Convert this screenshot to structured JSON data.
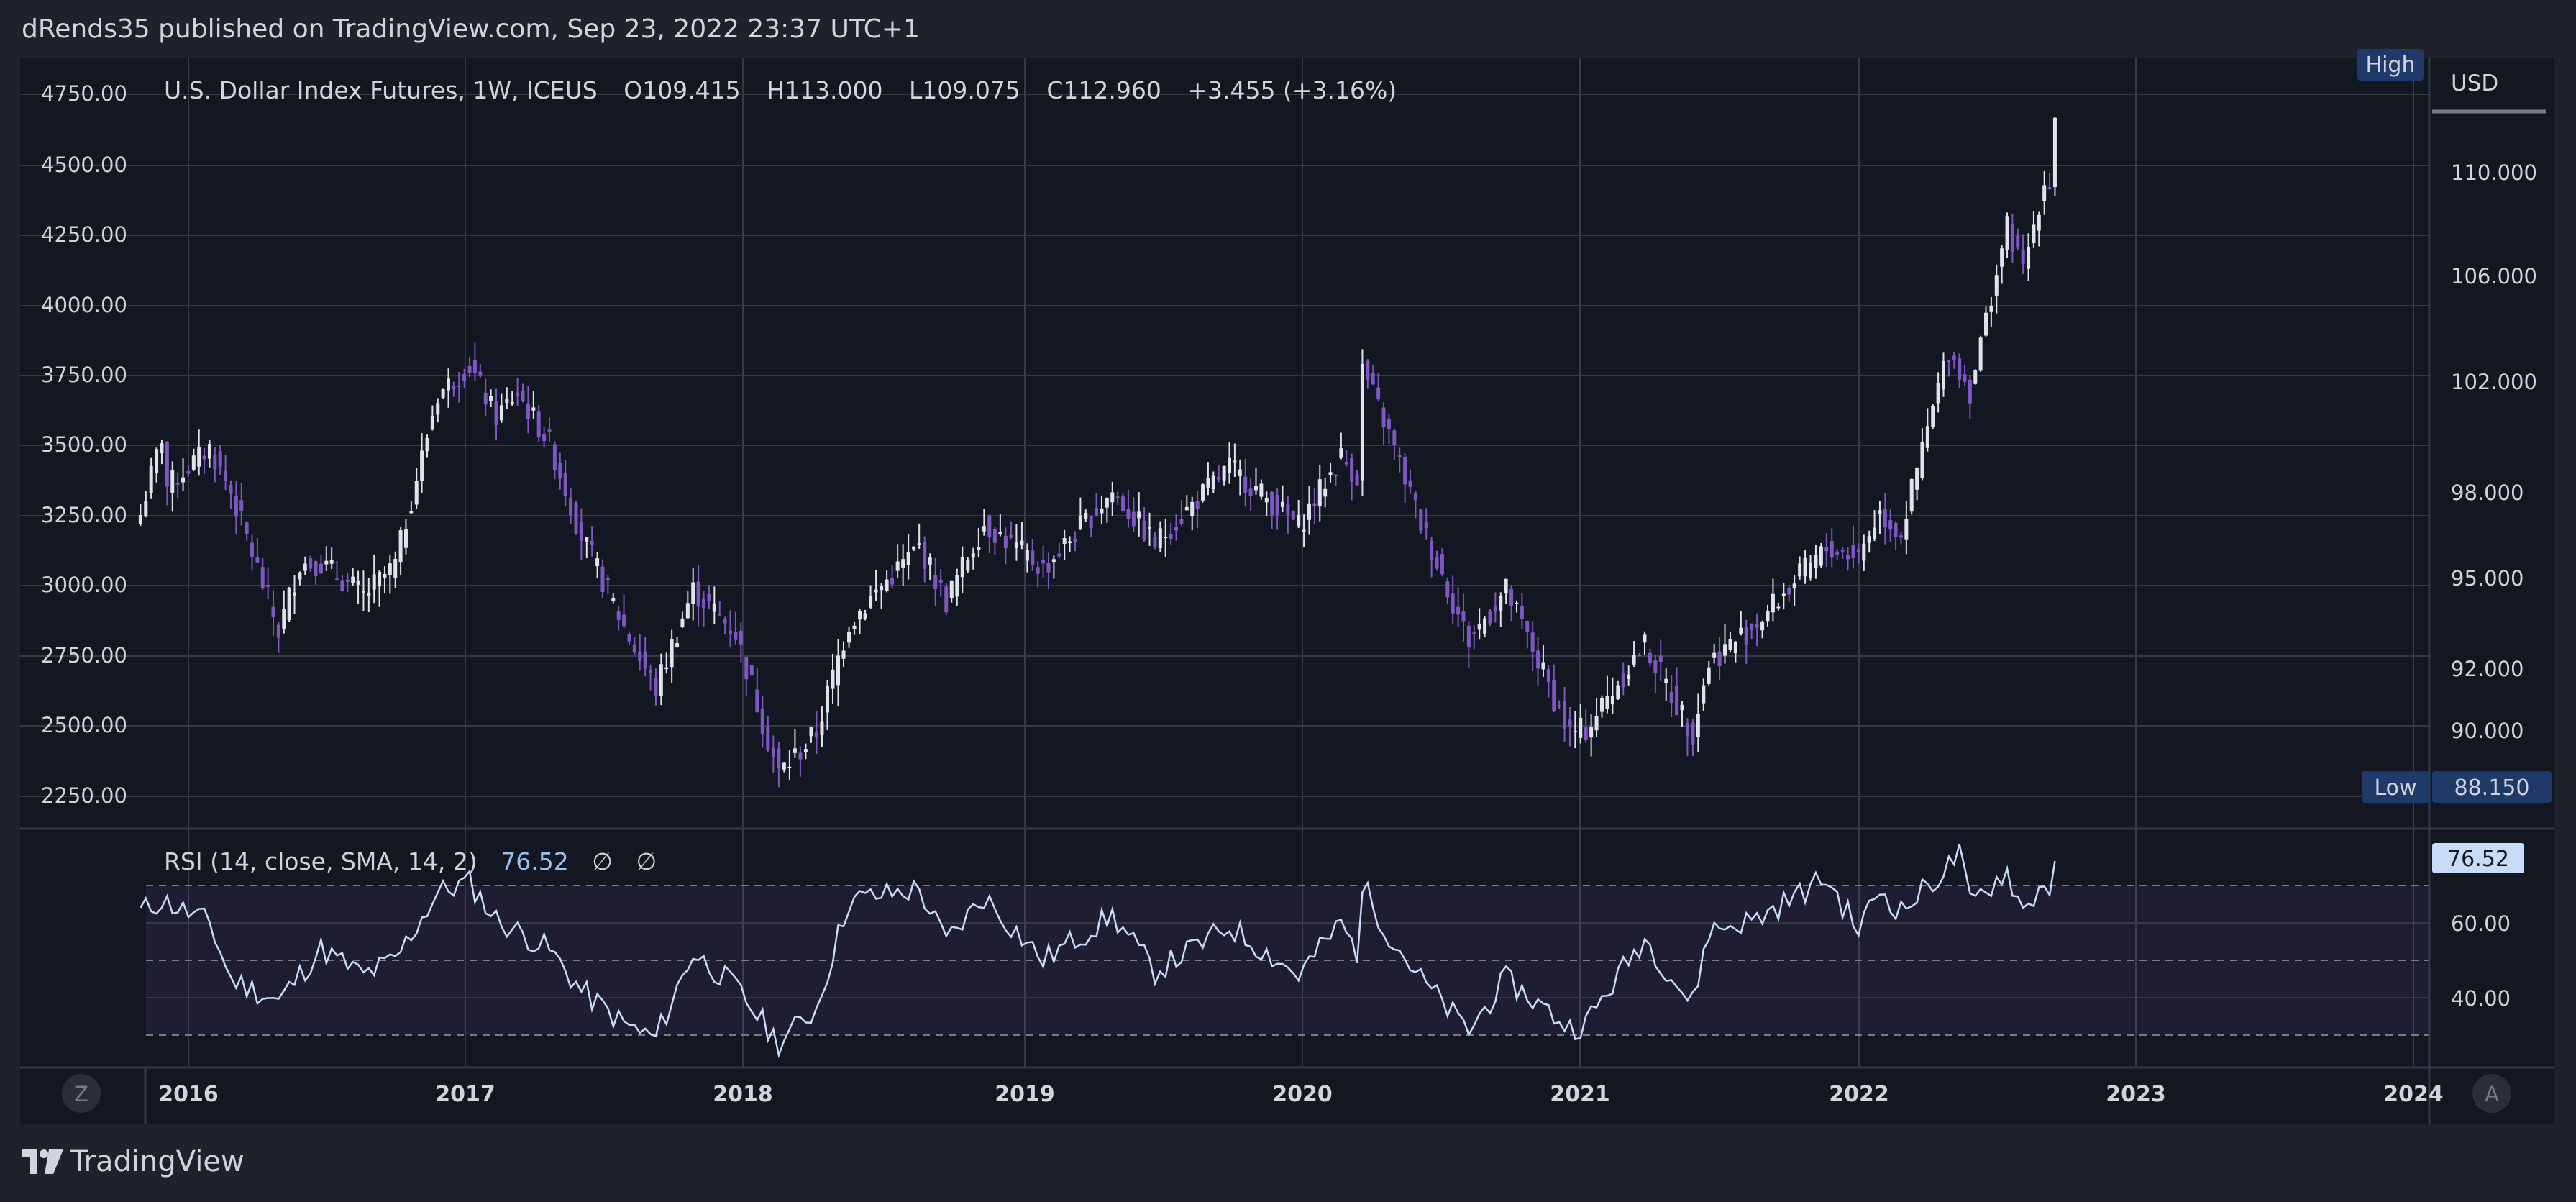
{
  "header": {
    "publisher_line": "dRends35 published on TradingView.com, Sep 23, 2022 23:37 UTC+1"
  },
  "legend": {
    "instrument": "U.S. Dollar Index Futures, 1W, ICEUS",
    "open": "O109.415",
    "high": "H113.000",
    "low": "L109.075",
    "close": "C112.960",
    "change": "+3.455 (+3.16%)"
  },
  "rsi_legend": {
    "name": "RSI (14, close, SMA, 14, 2)",
    "value": "76.52",
    "extra1": "∅",
    "extra2": "∅"
  },
  "right_scale": {
    "currency": "USD",
    "high_tag": "High",
    "low_tag": "Low",
    "low_value": "88.150",
    "rsi_current": "76.52"
  },
  "bottom_buttons": {
    "left": "Z",
    "right": "A"
  },
  "footer": {
    "brand": "TradingView"
  },
  "colors": {
    "background": "#131722",
    "frame": "#1e222d",
    "grid": "#363a45",
    "candle_up": "#e0e3eb",
    "candle_down": "#7e57c2",
    "rsi_line": "#c9dcf7",
    "rsi_band": "#7e57c2",
    "tag_bg": "#1f3a68",
    "rsi_tag_bg": "#c9dcf7"
  },
  "chart_data": [
    {
      "type": "candlestick",
      "title": "U.S. Dollar Index Futures, 1W, ICEUS",
      "interval": "1W",
      "left_axis_ticks": [
        "4750.00",
        "4500.00",
        "4250.00",
        "4000.00",
        "3750.00",
        "3500.00",
        "3250.00",
        "3000.00",
        "2750.00",
        "2500.00",
        "2250.00"
      ],
      "right_axis_ticks": [
        "110.000",
        "106.000",
        "102.000",
        "98.000",
        "95.000",
        "92.000",
        "90.000"
      ],
      "x_tick_labels": [
        "2016",
        "2017",
        "2018",
        "2019",
        "2020",
        "2021",
        "2022",
        "2023",
        "2024"
      ],
      "ylim": [
        88.15,
        113.0
      ],
      "grid": true,
      "series": [
        {
          "name": "U.S. Dollar Index Futures",
          "anchors": [
            {
              "date": "2015-10-30",
              "close": 97.2
            },
            {
              "date": "2015-11-27",
              "close": 100.0
            },
            {
              "date": "2015-12-04",
              "close": 98.2
            },
            {
              "date": "2016-01-29",
              "close": 99.6
            },
            {
              "date": "2016-02-26",
              "close": 98.0
            },
            {
              "date": "2016-04-29",
              "close": 93.2
            },
            {
              "date": "2016-05-27",
              "close": 95.5
            },
            {
              "date": "2016-06-24",
              "close": 95.5
            },
            {
              "date": "2016-08-19",
              "close": 94.4
            },
            {
              "date": "2016-09-30",
              "close": 95.4
            },
            {
              "date": "2016-11-25",
              "close": 101.5
            },
            {
              "date": "2017-01-06",
              "close": 102.6
            },
            {
              "date": "2017-02-10",
              "close": 100.7
            },
            {
              "date": "2017-03-10",
              "close": 101.6
            },
            {
              "date": "2017-04-21",
              "close": 99.8
            },
            {
              "date": "2017-06-02",
              "close": 96.5
            },
            {
              "date": "2017-07-28",
              "close": 93.4
            },
            {
              "date": "2017-09-08",
              "close": 91.3
            },
            {
              "date": "2017-10-27",
              "close": 94.6
            },
            {
              "date": "2017-12-22",
              "close": 93.2
            },
            {
              "date": "2018-02-16",
              "close": 88.6
            },
            {
              "date": "2018-04-06",
              "close": 89.9
            },
            {
              "date": "2018-05-18",
              "close": 93.5
            },
            {
              "date": "2018-08-17",
              "close": 96.1
            },
            {
              "date": "2018-09-21",
              "close": 94.2
            },
            {
              "date": "2018-11-09",
              "close": 96.9
            },
            {
              "date": "2019-01-25",
              "close": 95.3
            },
            {
              "date": "2019-04-26",
              "close": 98.0
            },
            {
              "date": "2019-06-21",
              "close": 96.2
            },
            {
              "date": "2019-09-27",
              "close": 98.9
            },
            {
              "date": "2019-12-27",
              "close": 96.8
            },
            {
              "date": "2020-02-21",
              "close": 99.3
            },
            {
              "date": "2020-03-13",
              "close": 98.5
            },
            {
              "date": "2020-03-20",
              "close": 102.5
            },
            {
              "date": "2020-04-24",
              "close": 100.1
            },
            {
              "date": "2020-06-05",
              "close": 96.9
            },
            {
              "date": "2020-08-07",
              "close": 92.9
            },
            {
              "date": "2020-09-25",
              "close": 94.6
            },
            {
              "date": "2020-12-18",
              "close": 89.9
            },
            {
              "date": "2021-01-08",
              "close": 90.0
            },
            {
              "date": "2021-03-26",
              "close": 92.8
            },
            {
              "date": "2021-05-28",
              "close": 89.9
            },
            {
              "date": "2021-06-18",
              "close": 92.2
            },
            {
              "date": "2021-08-20",
              "close": 93.5
            },
            {
              "date": "2021-11-19",
              "close": 96.0
            },
            {
              "date": "2021-12-31",
              "close": 95.8
            },
            {
              "date": "2022-01-28",
              "close": 97.3
            },
            {
              "date": "2022-02-25",
              "close": 96.5
            },
            {
              "date": "2022-04-29",
              "close": 103.2
            },
            {
              "date": "2022-05-27",
              "close": 101.6
            },
            {
              "date": "2022-07-15",
              "close": 107.9
            },
            {
              "date": "2022-08-05",
              "close": 106.2
            },
            {
              "date": "2022-09-02",
              "close": 109.6
            },
            {
              "date": "2022-09-16",
              "close": 109.7
            },
            {
              "date": "2022-09-23",
              "close": 112.96
            }
          ]
        }
      ]
    },
    {
      "type": "line",
      "title": "RSI (14, close, SMA, 14, 2)",
      "y_tick_labels": [
        "60.00",
        "40.00"
      ],
      "bands": [
        30,
        50,
        70
      ],
      "ylim": [
        20,
        80
      ],
      "series": [
        {
          "name": "RSI",
          "anchors": [
            {
              "date": "2015-10-30",
              "value": 63
            },
            {
              "date": "2015-11-27",
              "value": 66
            },
            {
              "date": "2016-01-29",
              "value": 60
            },
            {
              "date": "2016-02-26",
              "value": 45
            },
            {
              "date": "2016-04-29",
              "value": 39
            },
            {
              "date": "2016-06-24",
              "value": 53
            },
            {
              "date": "2016-08-19",
              "value": 46
            },
            {
              "date": "2016-09-30",
              "value": 50
            },
            {
              "date": "2016-11-25",
              "value": 68
            },
            {
              "date": "2017-01-06",
              "value": 71
            },
            {
              "date": "2017-02-10",
              "value": 61
            },
            {
              "date": "2017-04-21",
              "value": 53
            },
            {
              "date": "2017-06-02",
              "value": 42
            },
            {
              "date": "2017-07-28",
              "value": 33
            },
            {
              "date": "2017-09-08",
              "value": 29
            },
            {
              "date": "2017-10-27",
              "value": 52
            },
            {
              "date": "2017-12-22",
              "value": 43
            },
            {
              "date": "2018-02-16",
              "value": 28
            },
            {
              "date": "2018-04-06",
              "value": 37
            },
            {
              "date": "2018-05-18",
              "value": 66
            },
            {
              "date": "2018-08-17",
              "value": 69
            },
            {
              "date": "2018-09-21",
              "value": 55
            },
            {
              "date": "2018-11-09",
              "value": 67
            },
            {
              "date": "2019-01-25",
              "value": 50
            },
            {
              "date": "2019-04-26",
              "value": 62
            },
            {
              "date": "2019-06-21",
              "value": 47
            },
            {
              "date": "2019-09-27",
              "value": 59
            },
            {
              "date": "2019-12-27",
              "value": 46
            },
            {
              "date": "2020-02-21",
              "value": 60
            },
            {
              "date": "2020-03-13",
              "value": 52
            },
            {
              "date": "2020-03-20",
              "value": 70
            },
            {
              "date": "2020-04-24",
              "value": 57
            },
            {
              "date": "2020-06-05",
              "value": 45
            },
            {
              "date": "2020-08-07",
              "value": 31
            },
            {
              "date": "2020-09-25",
              "value": 45
            },
            {
              "date": "2020-12-18",
              "value": 32
            },
            {
              "date": "2021-01-08",
              "value": 33
            },
            {
              "date": "2021-03-26",
              "value": 56
            },
            {
              "date": "2021-05-28",
              "value": 38
            },
            {
              "date": "2021-06-18",
              "value": 58
            },
            {
              "date": "2021-08-20",
              "value": 61
            },
            {
              "date": "2021-11-19",
              "value": 72
            },
            {
              "date": "2021-12-31",
              "value": 58
            },
            {
              "date": "2022-01-28",
              "value": 69
            },
            {
              "date": "2022-02-25",
              "value": 63
            },
            {
              "date": "2022-04-29",
              "value": 75
            },
            {
              "date": "2022-05-13",
              "value": 79
            },
            {
              "date": "2022-05-27",
              "value": 65
            },
            {
              "date": "2022-07-15",
              "value": 74
            },
            {
              "date": "2022-08-05",
              "value": 63
            },
            {
              "date": "2022-09-02",
              "value": 71
            },
            {
              "date": "2022-09-16",
              "value": 68
            },
            {
              "date": "2022-09-23",
              "value": 76.52
            }
          ]
        }
      ]
    }
  ]
}
